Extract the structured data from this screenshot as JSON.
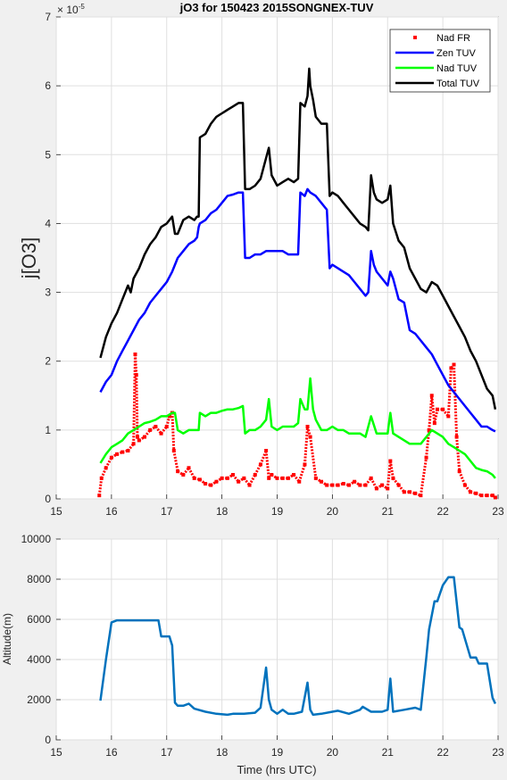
{
  "chart_data": [
    {
      "type": "line",
      "title": "jO3 for 150423 2015SONGNEX-TUV",
      "xlabel": "",
      "ylabel": "j[O3]",
      "y_exponent": "× 10^-5",
      "y_exponent_base": "× 10",
      "y_exponent_power": "-5",
      "xlim": [
        15,
        23
      ],
      "ylim": [
        0,
        7
      ],
      "xticks": [
        "15",
        "16",
        "17",
        "18",
        "19",
        "20",
        "21",
        "22",
        "23"
      ],
      "yticks": [
        "0",
        "1",
        "2",
        "3",
        "4",
        "5",
        "6",
        "7"
      ],
      "grid": true,
      "legend_position": "top-right",
      "series": [
        {
          "name": "Nad FR",
          "style": "markers",
          "color": "#ff0000",
          "x": [
            15.78,
            15.82,
            15.9,
            16.0,
            16.1,
            16.2,
            16.3,
            16.4,
            16.43,
            16.45,
            16.47,
            16.5,
            16.6,
            16.7,
            16.8,
            16.9,
            17.0,
            17.05,
            17.1,
            17.13,
            17.2,
            17.3,
            17.4,
            17.5,
            17.6,
            17.7,
            17.8,
            17.9,
            18.0,
            18.1,
            18.2,
            18.3,
            18.4,
            18.5,
            18.6,
            18.7,
            18.8,
            18.85,
            18.9,
            19.0,
            19.1,
            19.2,
            19.3,
            19.4,
            19.5,
            19.55,
            19.6,
            19.7,
            19.8,
            19.9,
            20.0,
            20.1,
            20.2,
            20.3,
            20.4,
            20.5,
            20.6,
            20.7,
            20.8,
            20.9,
            21.0,
            21.05,
            21.1,
            21.2,
            21.3,
            21.4,
            21.5,
            21.6,
            21.7,
            21.75,
            21.8,
            21.85,
            21.9,
            22.0,
            22.1,
            22.15,
            22.2,
            22.25,
            22.3,
            22.4,
            22.5,
            22.6,
            22.7,
            22.8,
            22.9,
            22.95
          ],
          "y": [
            0.05,
            0.3,
            0.45,
            0.6,
            0.65,
            0.68,
            0.7,
            0.8,
            2.1,
            1.8,
            0.9,
            0.85,
            0.9,
            1.0,
            1.05,
            0.95,
            1.05,
            1.2,
            1.25,
            0.7,
            0.4,
            0.35,
            0.45,
            0.3,
            0.28,
            0.22,
            0.2,
            0.25,
            0.3,
            0.3,
            0.35,
            0.25,
            0.3,
            0.2,
            0.35,
            0.5,
            0.7,
            0.3,
            0.35,
            0.3,
            0.3,
            0.3,
            0.35,
            0.25,
            0.5,
            1.05,
            0.9,
            0.3,
            0.25,
            0.2,
            0.2,
            0.2,
            0.22,
            0.2,
            0.25,
            0.2,
            0.2,
            0.3,
            0.15,
            0.2,
            0.15,
            0.55,
            0.3,
            0.2,
            0.1,
            0.1,
            0.08,
            0.05,
            0.6,
            1.0,
            1.5,
            1.1,
            1.3,
            1.3,
            1.2,
            1.9,
            1.95,
            0.9,
            0.4,
            0.2,
            0.1,
            0.08,
            0.05,
            0.05,
            0.05,
            0.02
          ]
        },
        {
          "name": "Zen TUV",
          "style": "line",
          "color": "#0000ff",
          "x": [
            15.8,
            15.9,
            16.0,
            16.1,
            16.2,
            16.3,
            16.4,
            16.5,
            16.6,
            16.7,
            16.8,
            16.9,
            17.0,
            17.1,
            17.2,
            17.3,
            17.4,
            17.5,
            17.55,
            17.58,
            17.6,
            17.7,
            17.8,
            17.9,
            18.0,
            18.1,
            18.2,
            18.3,
            18.38,
            18.42,
            18.5,
            18.6,
            18.7,
            18.8,
            18.9,
            19.0,
            19.1,
            19.2,
            19.3,
            19.38,
            19.42,
            19.5,
            19.55,
            19.6,
            19.7,
            19.8,
            19.9,
            19.95,
            20.0,
            20.1,
            20.2,
            20.3,
            20.4,
            20.5,
            20.6,
            20.65,
            20.7,
            20.75,
            20.8,
            20.9,
            21.0,
            21.05,
            21.1,
            21.2,
            21.3,
            21.4,
            21.5,
            21.6,
            21.7,
            21.8,
            21.9,
            22.0,
            22.1,
            22.2,
            22.3,
            22.4,
            22.5,
            22.6,
            22.7,
            22.8,
            22.9,
            22.95
          ],
          "y": [
            1.55,
            1.7,
            1.8,
            2.0,
            2.15,
            2.3,
            2.45,
            2.6,
            2.7,
            2.85,
            2.95,
            3.05,
            3.15,
            3.3,
            3.5,
            3.6,
            3.7,
            3.75,
            3.8,
            3.95,
            4.0,
            4.05,
            4.15,
            4.2,
            4.3,
            4.4,
            4.42,
            4.45,
            4.45,
            3.5,
            3.5,
            3.55,
            3.55,
            3.6,
            3.6,
            3.6,
            3.6,
            3.55,
            3.55,
            3.55,
            4.45,
            4.4,
            4.5,
            4.45,
            4.4,
            4.3,
            4.2,
            3.35,
            3.4,
            3.35,
            3.3,
            3.25,
            3.15,
            3.05,
            2.95,
            3.0,
            3.6,
            3.4,
            3.3,
            3.2,
            3.1,
            3.3,
            3.2,
            2.9,
            2.85,
            2.45,
            2.4,
            2.3,
            2.2,
            2.1,
            1.95,
            1.8,
            1.65,
            1.55,
            1.45,
            1.35,
            1.25,
            1.15,
            1.05,
            1.05,
            1.0,
            0.98
          ]
        },
        {
          "name": "Nad TUV",
          "style": "line",
          "color": "#00ff00",
          "x": [
            15.8,
            15.9,
            16.0,
            16.1,
            16.2,
            16.3,
            16.4,
            16.5,
            16.6,
            16.7,
            16.8,
            16.9,
            17.0,
            17.1,
            17.15,
            17.2,
            17.3,
            17.4,
            17.5,
            17.58,
            17.6,
            17.7,
            17.8,
            17.9,
            18.0,
            18.1,
            18.2,
            18.3,
            18.38,
            18.42,
            18.5,
            18.6,
            18.7,
            18.8,
            18.85,
            18.9,
            19.0,
            19.1,
            19.2,
            19.3,
            19.38,
            19.42,
            19.5,
            19.55,
            19.6,
            19.65,
            19.7,
            19.8,
            19.9,
            20.0,
            20.1,
            20.2,
            20.3,
            20.4,
            20.5,
            20.6,
            20.7,
            20.8,
            20.9,
            21.0,
            21.05,
            21.1,
            21.2,
            21.3,
            21.4,
            21.5,
            21.6,
            21.7,
            21.8,
            21.9,
            22.0,
            22.1,
            22.2,
            22.3,
            22.4,
            22.5,
            22.6,
            22.7,
            22.8,
            22.9,
            22.95
          ],
          "y": [
            0.52,
            0.65,
            0.75,
            0.8,
            0.85,
            0.95,
            1.0,
            1.05,
            1.1,
            1.12,
            1.15,
            1.2,
            1.2,
            1.25,
            1.25,
            1.0,
            0.95,
            1.0,
            1.0,
            1.0,
            1.25,
            1.2,
            1.25,
            1.25,
            1.28,
            1.3,
            1.3,
            1.32,
            1.35,
            0.95,
            1.0,
            1.0,
            1.05,
            1.15,
            1.45,
            1.05,
            1.0,
            1.05,
            1.05,
            1.05,
            1.1,
            1.45,
            1.3,
            1.3,
            1.75,
            1.3,
            1.15,
            1.0,
            1.0,
            1.05,
            1.0,
            1.0,
            0.95,
            0.95,
            0.95,
            0.9,
            1.2,
            0.95,
            0.95,
            0.95,
            1.25,
            0.95,
            0.9,
            0.85,
            0.8,
            0.8,
            0.8,
            0.9,
            1.0,
            0.95,
            0.9,
            0.8,
            0.75,
            0.7,
            0.65,
            0.55,
            0.45,
            0.42,
            0.4,
            0.35,
            0.3
          ]
        },
        {
          "name": "Total TUV",
          "style": "line",
          "color": "#000000",
          "x": [
            15.8,
            15.9,
            16.0,
            16.1,
            16.2,
            16.3,
            16.35,
            16.4,
            16.5,
            16.6,
            16.7,
            16.8,
            16.9,
            17.0,
            17.1,
            17.15,
            17.2,
            17.3,
            17.4,
            17.5,
            17.55,
            17.58,
            17.6,
            17.7,
            17.8,
            17.9,
            18.0,
            18.1,
            18.2,
            18.3,
            18.38,
            18.42,
            18.5,
            18.6,
            18.7,
            18.8,
            18.85,
            18.9,
            19.0,
            19.1,
            19.2,
            19.3,
            19.38,
            19.42,
            19.5,
            19.55,
            19.58,
            19.6,
            19.65,
            19.7,
            19.8,
            19.9,
            19.95,
            20.0,
            20.1,
            20.2,
            20.3,
            20.4,
            20.5,
            20.6,
            20.65,
            20.7,
            20.75,
            20.8,
            20.9,
            21.0,
            21.05,
            21.1,
            21.2,
            21.3,
            21.4,
            21.5,
            21.6,
            21.7,
            21.8,
            21.9,
            22.0,
            22.1,
            22.2,
            22.3,
            22.4,
            22.5,
            22.6,
            22.7,
            22.8,
            22.9,
            22.95
          ],
          "y": [
            2.05,
            2.35,
            2.55,
            2.7,
            2.9,
            3.1,
            3.0,
            3.2,
            3.35,
            3.55,
            3.7,
            3.8,
            3.95,
            4.0,
            4.1,
            3.85,
            3.85,
            4.05,
            4.1,
            4.05,
            4.1,
            4.1,
            5.25,
            5.3,
            5.45,
            5.55,
            5.6,
            5.65,
            5.7,
            5.75,
            5.75,
            4.5,
            4.5,
            4.55,
            4.65,
            4.95,
            5.1,
            4.7,
            4.55,
            4.6,
            4.65,
            4.6,
            4.65,
            5.75,
            5.7,
            5.85,
            6.25,
            6.0,
            5.8,
            5.55,
            5.45,
            5.45,
            4.4,
            4.45,
            4.4,
            4.3,
            4.2,
            4.1,
            4.0,
            3.95,
            3.9,
            4.7,
            4.45,
            4.35,
            4.3,
            4.35,
            4.55,
            4.0,
            3.75,
            3.65,
            3.35,
            3.2,
            3.05,
            3.0,
            3.15,
            3.1,
            2.95,
            2.8,
            2.65,
            2.5,
            2.35,
            2.15,
            2.0,
            1.8,
            1.6,
            1.5,
            1.3
          ]
        }
      ]
    },
    {
      "type": "line",
      "title": "",
      "xlabel": "Time (hrs UTC)",
      "ylabel": "Altitude(m)",
      "xlim": [
        15,
        23
      ],
      "ylim": [
        0,
        10000
      ],
      "xticks": [
        "15",
        "16",
        "17",
        "18",
        "19",
        "20",
        "21",
        "22",
        "23"
      ],
      "yticks": [
        "0",
        "2000",
        "4000",
        "6000",
        "8000",
        "10000"
      ],
      "grid": true,
      "series": [
        {
          "color": "#0072bd",
          "x": [
            15.8,
            15.9,
            16.0,
            16.1,
            16.3,
            16.6,
            16.85,
            16.9,
            17.05,
            17.1,
            17.15,
            17.2,
            17.3,
            17.4,
            17.5,
            17.7,
            17.9,
            18.1,
            18.2,
            18.4,
            18.6,
            18.7,
            18.8,
            18.85,
            18.9,
            19.0,
            19.1,
            19.2,
            19.3,
            19.45,
            19.55,
            19.6,
            19.65,
            19.8,
            20.0,
            20.1,
            20.3,
            20.5,
            20.55,
            20.7,
            20.9,
            21.0,
            21.05,
            21.1,
            21.3,
            21.5,
            21.6,
            21.7,
            21.75,
            21.85,
            21.9,
            22.0,
            22.1,
            22.2,
            22.3,
            22.35,
            22.5,
            22.6,
            22.65,
            22.8,
            22.9,
            22.95
          ],
          "y": [
            1950,
            4000,
            5850,
            5950,
            5950,
            5950,
            5950,
            5150,
            5150,
            4700,
            1850,
            1700,
            1700,
            1800,
            1550,
            1400,
            1300,
            1250,
            1300,
            1300,
            1350,
            1600,
            3600,
            2000,
            1500,
            1300,
            1500,
            1300,
            1300,
            1400,
            2850,
            1500,
            1250,
            1300,
            1400,
            1450,
            1300,
            1500,
            1650,
            1400,
            1400,
            1500,
            3050,
            1400,
            1500,
            1600,
            1500,
            4100,
            5500,
            6900,
            6900,
            7700,
            8100,
            8100,
            5600,
            5500,
            4100,
            4100,
            3800,
            3800,
            2100,
            1800
          ]
        }
      ]
    }
  ]
}
